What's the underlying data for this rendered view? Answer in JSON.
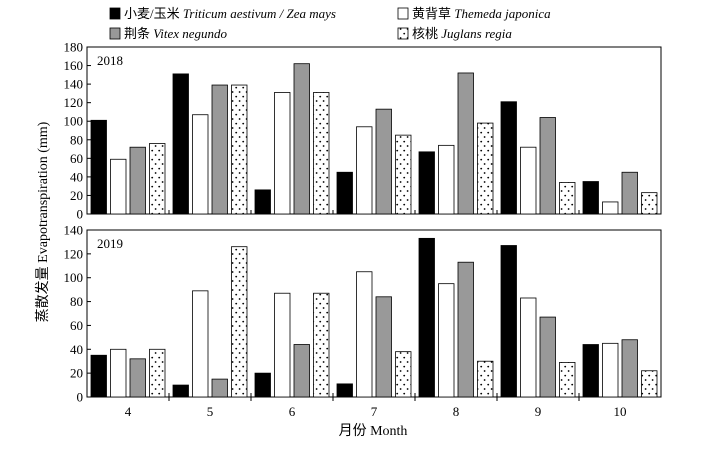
{
  "chart_data": [
    {
      "type": "bar",
      "panel_label": "2018",
      "categories": [
        "4",
        "5",
        "6",
        "7",
        "8",
        "9",
        "10"
      ],
      "ylim": [
        0,
        180
      ],
      "yticks": [
        0,
        20,
        40,
        60,
        80,
        100,
        120,
        140,
        160,
        180
      ],
      "series": [
        {
          "name": "小麦/玉米 Triticum aestivum / Zea mays",
          "values": [
            101,
            151,
            26,
            45,
            67,
            121,
            35
          ]
        },
        {
          "name": "黄背草 Themeda japonica",
          "values": [
            59,
            107,
            131,
            94,
            74,
            72,
            13
          ]
        },
        {
          "name": "荆条 Vitex negundo",
          "values": [
            72,
            139,
            162,
            113,
            152,
            104,
            45
          ]
        },
        {
          "name": "核桃 Juglans regia",
          "values": [
            76,
            139,
            131,
            85,
            98,
            34,
            23
          ]
        }
      ]
    },
    {
      "type": "bar",
      "panel_label": "2019",
      "categories": [
        "4",
        "5",
        "6",
        "7",
        "8",
        "9",
        "10"
      ],
      "ylim": [
        0,
        140
      ],
      "yticks": [
        0,
        20,
        40,
        60,
        80,
        100,
        120,
        140
      ],
      "series": [
        {
          "name": "小麦/玉米 Triticum aestivum / Zea mays",
          "values": [
            35,
            10,
            20,
            11,
            133,
            127,
            44
          ]
        },
        {
          "name": "黄背草 Themeda japonica",
          "values": [
            40,
            89,
            87,
            105,
            95,
            83,
            45
          ]
        },
        {
          "name": "荆条 Vitex negundo",
          "values": [
            32,
            15,
            44,
            84,
            113,
            67,
            48
          ]
        },
        {
          "name": "核桃 Juglans regia",
          "values": [
            40,
            126,
            87,
            38,
            30,
            29,
            22
          ]
        }
      ]
    }
  ],
  "axes": {
    "ylabel": "蒸散发量 Evapotranspiration (mm)",
    "xlabel": "月份 Month"
  },
  "legend": {
    "placement": "top",
    "items": [
      {
        "cn": "小麦/玉米 ",
        "latin": "Triticum aestivum / Zea mays",
        "style": "solid-black"
      },
      {
        "cn": "黄背草 ",
        "latin": "Themeda japonica",
        "style": "white"
      },
      {
        "cn": "荆条 ",
        "latin": "Vitex negundo",
        "style": "gray"
      },
      {
        "cn": "核桃 ",
        "latin": "Juglans regia",
        "style": "dotted"
      }
    ]
  },
  "colors": {
    "wheat_maize": "#000000",
    "themeda": "#ffffff",
    "vitex": "#999999",
    "juglans": "#ffffff",
    "outline": "#000000"
  }
}
